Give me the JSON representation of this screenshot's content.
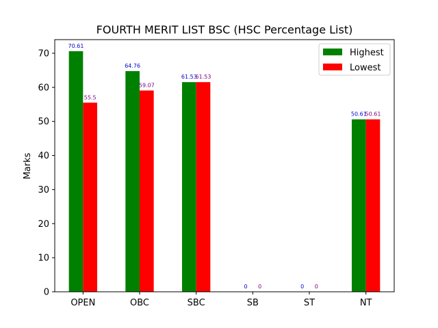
{
  "chart_data": {
    "type": "bar",
    "title": "FOURTH MERIT LIST BSC (HSC Percentage List)",
    "xlabel": "",
    "ylabel": "Marks",
    "categories": [
      "OPEN",
      "OBC",
      "SBC",
      "SB",
      "ST",
      "NT"
    ],
    "series": [
      {
        "name": "Highest",
        "color": "#008000",
        "label_color": "#0000cc",
        "values": [
          70.61,
          64.76,
          61.53,
          0,
          0,
          50.61
        ]
      },
      {
        "name": "Lowest",
        "color": "#ff0000",
        "label_color": "#800080",
        "values": [
          55.5,
          59.07,
          61.53,
          0,
          0,
          50.61
        ]
      }
    ],
    "ylim": [
      0,
      74
    ],
    "yticks": [
      0,
      10,
      20,
      30,
      40,
      50,
      60,
      70
    ],
    "grid": false,
    "legend": "top-right"
  }
}
